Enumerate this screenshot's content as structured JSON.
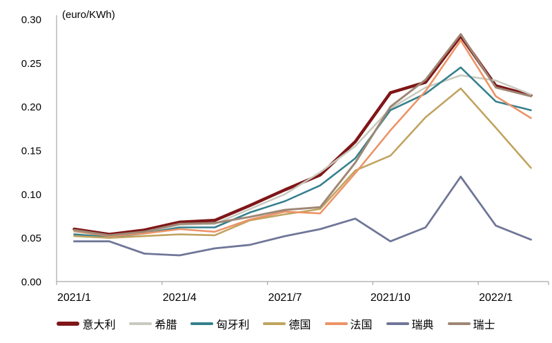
{
  "chart_data": {
    "type": "line",
    "title": "",
    "unit_label": "(euro/KWh)",
    "xlabel": "",
    "ylabel": "(euro/KWh)",
    "ylim": [
      0,
      0.3
    ],
    "y_tick_labels": [
      "0.30",
      "0.25",
      "0.20",
      "0.15",
      "0.10",
      "0.05",
      "0.00"
    ],
    "x": [
      "2021/1",
      "2021/2",
      "2021/3",
      "2021/4",
      "2021/5",
      "2021/6",
      "2021/7",
      "2021/8",
      "2021/9",
      "2021/10",
      "2021/11",
      "2021/12",
      "2022/1",
      "2022/2"
    ],
    "x_tick_labels": [
      "2021/1",
      "2021/4",
      "2021/7",
      "2021/10",
      "2022/1"
    ],
    "x_tick_positions": [
      0,
      3,
      6,
      9,
      12
    ],
    "grid": false,
    "legend_position": "bottom",
    "axis_color": "#a6a6a6",
    "series": [
      {
        "name": "意大利",
        "color": "#7f1618",
        "line_width": 4.5,
        "values": [
          0.06,
          0.054,
          0.059,
          0.068,
          0.07,
          0.087,
          0.105,
          0.122,
          0.16,
          0.216,
          0.228,
          0.281,
          0.224,
          0.213
        ]
      },
      {
        "name": "希腊",
        "color": "#c9cabf",
        "line_width": 2.6,
        "values": [
          0.057,
          0.052,
          0.056,
          0.065,
          0.066,
          0.083,
          0.1,
          0.125,
          0.155,
          0.198,
          0.222,
          0.236,
          0.23,
          0.214
        ]
      },
      {
        "name": "匈牙利",
        "color": "#35808d",
        "line_width": 2.6,
        "values": [
          0.054,
          0.051,
          0.055,
          0.062,
          0.062,
          0.079,
          0.092,
          0.11,
          0.141,
          0.196,
          0.215,
          0.245,
          0.206,
          0.196
        ]
      },
      {
        "name": "德国",
        "color": "#c1a35f",
        "line_width": 2.6,
        "values": [
          0.052,
          0.05,
          0.052,
          0.054,
          0.053,
          0.07,
          0.077,
          0.083,
          0.127,
          0.144,
          0.188,
          0.221,
          0.176,
          0.13
        ]
      },
      {
        "name": "法国",
        "color": "#ec9366",
        "line_width": 2.6,
        "values": [
          0.058,
          0.052,
          0.055,
          0.06,
          0.057,
          0.071,
          0.08,
          0.078,
          0.124,
          0.173,
          0.218,
          0.276,
          0.212,
          0.187
        ]
      },
      {
        "name": "瑞典",
        "color": "#6f7697",
        "line_width": 2.8,
        "values": [
          0.046,
          0.046,
          0.032,
          0.03,
          0.038,
          0.042,
          0.052,
          0.06,
          0.072,
          0.046,
          0.062,
          0.12,
          0.064,
          0.048
        ]
      },
      {
        "name": "瑞士",
        "color": "#9e8775",
        "line_width": 3.0,
        "values": [
          0.059,
          0.053,
          0.057,
          0.066,
          0.067,
          0.074,
          0.082,
          0.085,
          0.136,
          0.2,
          0.231,
          0.283,
          0.222,
          0.212
        ]
      }
    ]
  }
}
